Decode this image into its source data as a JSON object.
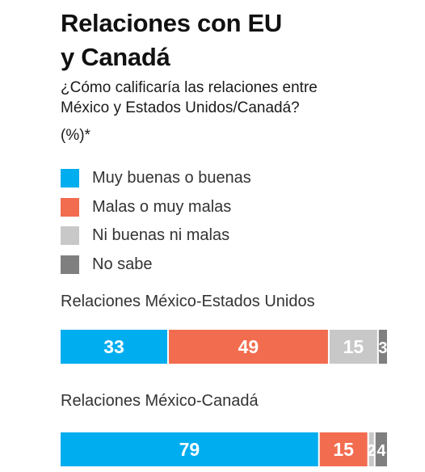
{
  "title_line1": "Relaciones con EU",
  "title_line2": "y Canadá",
  "subtitle_line1": "¿Cómo calificaría las relaciones entre",
  "subtitle_line2": "México y Estados Unidos/Canadá?",
  "unit": "(%)*",
  "colors": {
    "muy_buenas": "#00adef",
    "malas": "#f26c4f",
    "ni_buenas": "#c8c8c8",
    "no_sabe": "#7f7f7f"
  },
  "chart_data": {
    "type": "bar",
    "orientation": "horizontal-stacked",
    "legend": [
      "Muy buenas o buenas",
      "Malas o muy malas",
      "Ni buenas ni malas",
      "No sabe"
    ],
    "legend_placement": "top",
    "categories": [
      "Relaciones México-Estados Unidos",
      "Relaciones México-Canadá"
    ],
    "series": [
      {
        "name": "Muy buenas o buenas",
        "values": [
          33,
          79
        ]
      },
      {
        "name": "Malas o muy malas",
        "values": [
          49,
          15
        ]
      },
      {
        "name": "Ni buenas ni malas",
        "values": [
          15,
          2
        ]
      },
      {
        "name": "No sabe",
        "values": [
          3,
          4
        ]
      }
    ],
    "xlim": [
      0,
      100
    ]
  }
}
